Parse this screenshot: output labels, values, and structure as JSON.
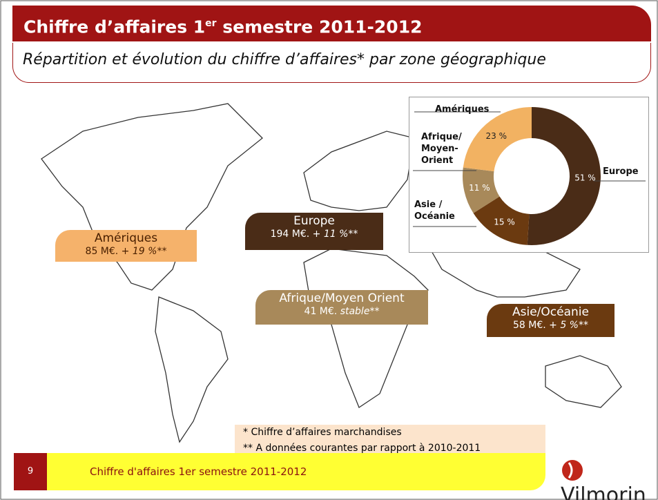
{
  "header": {
    "title": "Chiffre d’affaires 1",
    "title_sup": "er",
    "title_end": " semestre 2011-2012",
    "subtitle": "Répartition et évolution du chiffre d’affaires* par zone géographique"
  },
  "regions": [
    {
      "name": "Amériques",
      "amount": "85 M€. + ",
      "change": "19 %",
      "note": "**"
    },
    {
      "name": "Europe",
      "amount": "194 M€. + ",
      "change": "11 %",
      "note": "**"
    },
    {
      "name": "Afrique/Moyen Orient",
      "amount": "41 M€. ",
      "change": "stable",
      "note": "**"
    },
    {
      "name": "Asie/Océanie",
      "amount": "58 M€. + ",
      "change": "5 %",
      "note": "**"
    }
  ],
  "chart_data": {
    "type": "donut",
    "categories": [
      "Europe",
      "Asie /\nOcéanie",
      "Afrique/\nMoyen-\nOrient",
      "Amériques"
    ],
    "values": [
      51,
      15,
      11,
      23
    ],
    "value_labels": [
      "51 %",
      "15 %",
      "11 %",
      "23 %"
    ],
    "colors": [
      "#4a2c17",
      "#6b3a10",
      "#a8895a",
      "#f2b262"
    ]
  },
  "notes": [
    "* Chiffre d’affaires marchandises",
    "** A données courantes par rapport à 2010-2011"
  ],
  "footer": {
    "page": "9",
    "text": "Chiffre d'affaires 1er semestre 2011-2012",
    "logo": "Vilmorin"
  }
}
